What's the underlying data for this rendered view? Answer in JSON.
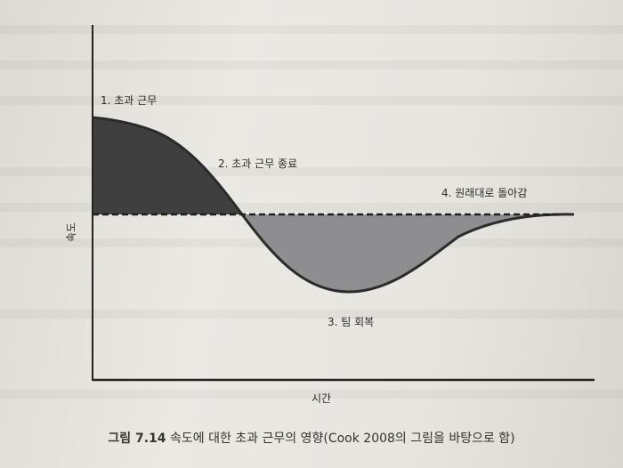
{
  "figure": {
    "labels": {
      "overtime": "1. 초과 근무",
      "overtime_end": "2. 초과 근무 종료",
      "recovery": "3. 팀 회복",
      "return": "4. 원래대로 돌아감"
    },
    "y_axis_label": "속도",
    "x_axis_label": "시간",
    "colors": {
      "dark_fill": "#3f3f40",
      "light_fill": "#8e8e90",
      "ink": "#2b2b2b"
    }
  },
  "caption": {
    "number": "그림 7.14",
    "text": "속도에 대한 초과 근무의 영향",
    "source": "(Cook 2008의 그림을 바탕으로 함)"
  }
}
